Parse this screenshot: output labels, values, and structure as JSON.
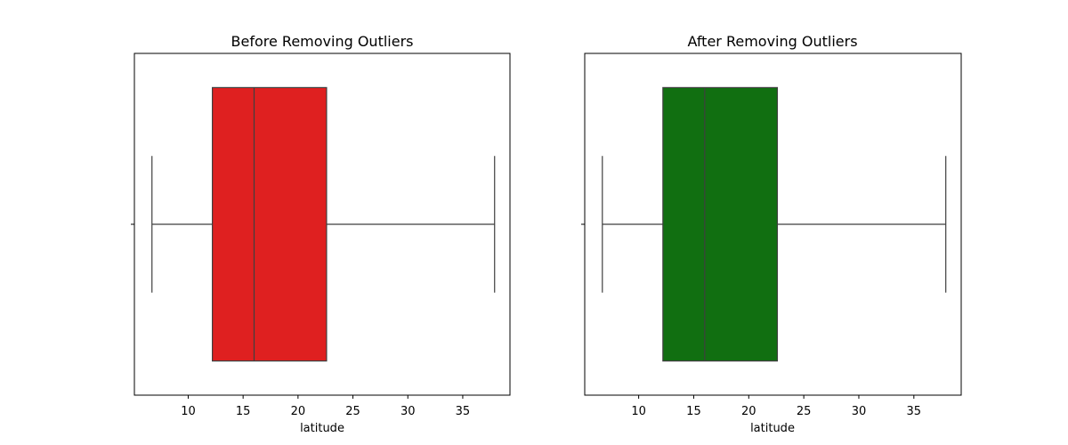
{
  "chart_data": [
    {
      "type": "boxplot",
      "orientation": "horizontal",
      "title": "Before Removing Outliers",
      "xlabel": "latitude",
      "ylabel": "",
      "xlim": [
        5.1,
        39.3
      ],
      "xticks": [
        "10",
        "15",
        "20",
        "25",
        "30",
        "35"
      ],
      "grid": false,
      "color": "#df2020",
      "box": {
        "whisker_low": 6.7,
        "q1": 12.2,
        "median": 16.0,
        "q3": 22.6,
        "whisker_high": 37.9
      },
      "outliers": []
    },
    {
      "type": "boxplot",
      "orientation": "horizontal",
      "title": "After Removing Outliers",
      "xlabel": "latitude",
      "ylabel": "",
      "xlim": [
        5.1,
        39.3
      ],
      "xticks": [
        "10",
        "15",
        "20",
        "25",
        "30",
        "35"
      ],
      "grid": false,
      "color": "#116f11",
      "box": {
        "whisker_low": 6.7,
        "q1": 12.2,
        "median": 16.0,
        "q3": 22.6,
        "whisker_high": 37.9
      },
      "outliers": []
    }
  ]
}
